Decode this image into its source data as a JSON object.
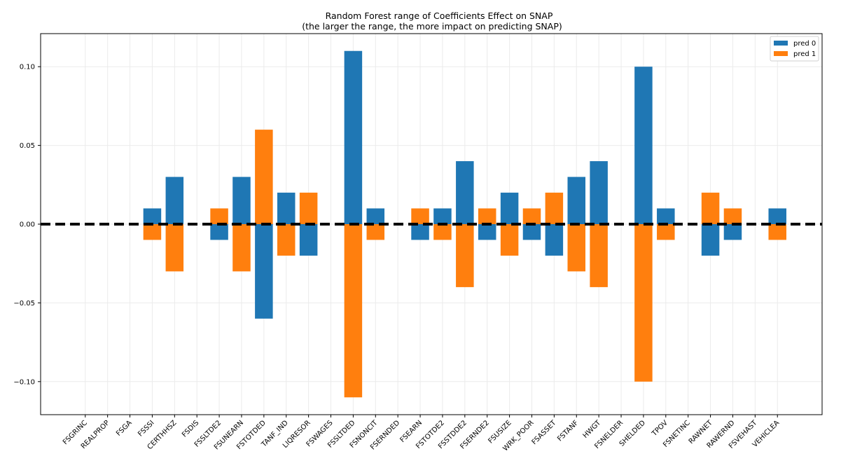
{
  "chart_data": {
    "type": "bar",
    "title": "Random Forest range of Coefficients Effect on SNAP",
    "subtitle": "(the larger the range, the more impact on predicting SNAP)",
    "xlabel": "",
    "ylabel": "",
    "categories": [
      "FSGRINC",
      "REALPROP",
      "FSGA",
      "FSSSI",
      "CERTHHSZ",
      "FSDIS",
      "FSSLTDE2",
      "FSUNEARN",
      "FSTOTDED",
      "TANF_IND",
      "LIQRESOR",
      "FSWAGES",
      "FSSLTDED",
      "FSNONCIT",
      "FSERNDED",
      "FSEARN",
      "FSTOTDE2",
      "FSSTDDE2",
      "FSERNDE2",
      "FSUSIZE",
      "WRK_POOR",
      "FSASSET",
      "FSTANF",
      "HWGT",
      "FSNELDER",
      "SHELDED",
      "TPOV",
      "FSNETINC",
      "RAWNET",
      "RAWERND",
      "FSVEHAST",
      "VEHICLEA"
    ],
    "series": [
      {
        "name": "pred 0",
        "color": "#1f77b4",
        "values": [
          0,
          0,
          0,
          0.01,
          0.03,
          0,
          -0.01,
          0.03,
          -0.06,
          0.02,
          -0.02,
          0,
          0.11,
          0.01,
          0,
          -0.01,
          0.01,
          0.04,
          -0.01,
          0.02,
          -0.01,
          -0.02,
          0.03,
          0.04,
          0,
          0.1,
          0.01,
          0,
          -0.02,
          -0.01,
          0,
          0.01
        ]
      },
      {
        "name": "pred 1",
        "color": "#ff7f0e",
        "values": [
          0,
          0,
          0,
          -0.01,
          -0.03,
          0,
          0.01,
          -0.03,
          0.06,
          -0.02,
          0.02,
          0,
          -0.11,
          -0.01,
          0,
          0.01,
          -0.01,
          -0.04,
          0.01,
          -0.02,
          0.01,
          0.02,
          -0.03,
          -0.04,
          0,
          -0.1,
          -0.01,
          0,
          0.02,
          0.01,
          0,
          -0.01
        ]
      }
    ],
    "yticks": [
      -0.1,
      -0.05,
      0.0,
      0.05,
      0.1
    ],
    "ytick_labels": [
      "−0.10",
      "−0.05",
      "0.00",
      "0.05",
      "0.10"
    ],
    "ylim": [
      -0.121,
      0.121
    ],
    "xlim": [
      -2,
      33
    ],
    "bar_width": 0.8,
    "reference_line": {
      "y": 0,
      "style": "dashed",
      "color": "#000000"
    },
    "grid": true,
    "legend_position": "top-right",
    "x_tick_rotation": 45
  }
}
